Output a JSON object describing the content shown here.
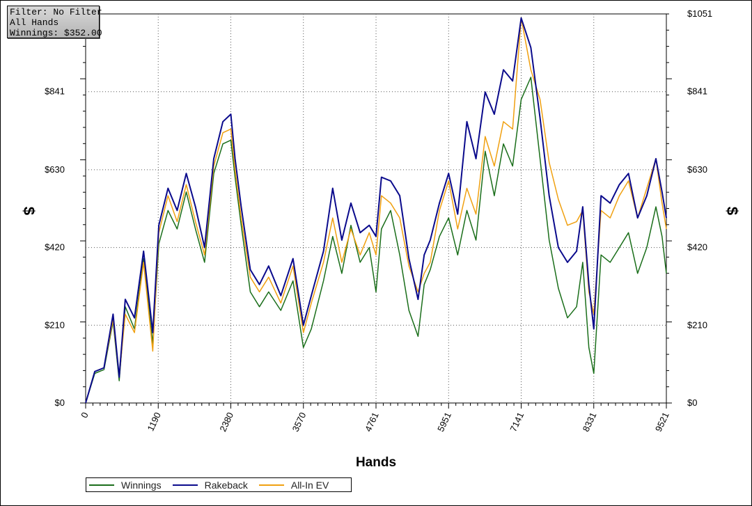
{
  "info_box": {
    "filter": "Filter: No Filter",
    "hands": "All Hands",
    "winnings": "Winnings: $352.00"
  },
  "colors": {
    "winnings": "#1a6e1a",
    "rakeback": "#0a0a8c",
    "allin_ev": "#f0a010"
  },
  "chart_data": {
    "type": "line",
    "xlabel": "Hands",
    "ylabel_left": "$",
    "ylabel_right": "$",
    "xlim": [
      0,
      9521
    ],
    "ylim": [
      0,
      1051
    ],
    "x_ticks": [
      "0",
      "1190",
      "2380",
      "3570",
      "4761",
      "5951",
      "7141",
      "8331",
      "9521"
    ],
    "y_ticks": [
      "$0",
      "$210",
      "$420",
      "$630",
      "$841",
      "$1051"
    ],
    "y_tick_values": [
      0,
      210,
      420,
      630,
      841,
      1051
    ],
    "grid": true,
    "legend_position": "bottom-left",
    "x": [
      0,
      150,
      300,
      450,
      550,
      650,
      800,
      950,
      1100,
      1200,
      1350,
      1500,
      1650,
      1800,
      1950,
      2100,
      2250,
      2380,
      2450,
      2550,
      2700,
      2850,
      3000,
      3200,
      3400,
      3570,
      3700,
      3900,
      4050,
      4200,
      4350,
      4500,
      4650,
      4761,
      4850,
      5000,
      5150,
      5300,
      5450,
      5550,
      5650,
      5800,
      5951,
      6100,
      6250,
      6400,
      6550,
      6700,
      6850,
      7000,
      7141,
      7300,
      7450,
      7600,
      7750,
      7900,
      8050,
      8150,
      8250,
      8331,
      8450,
      8600,
      8750,
      8900,
      9050,
      9200,
      9350,
      9450,
      9521
    ],
    "series": [
      {
        "name": "Winnings",
        "values": [
          0,
          80,
          90,
          220,
          60,
          260,
          200,
          390,
          160,
          430,
          520,
          470,
          570,
          470,
          380,
          620,
          700,
          710,
          610,
          480,
          300,
          260,
          300,
          250,
          330,
          150,
          200,
          330,
          450,
          350,
          480,
          380,
          420,
          300,
          470,
          520,
          400,
          250,
          180,
          320,
          360,
          450,
          500,
          400,
          520,
          440,
          680,
          560,
          700,
          640,
          820,
          880,
          660,
          440,
          310,
          230,
          260,
          380,
          150,
          80,
          400,
          380,
          420,
          460,
          350,
          420,
          530,
          450,
          350
        ],
        "color": "#1a6e1a"
      },
      {
        "name": "Rakeback",
        "values": [
          0,
          85,
          95,
          240,
          70,
          280,
          230,
          410,
          190,
          480,
          580,
          520,
          620,
          530,
          420,
          660,
          760,
          780,
          660,
          530,
          360,
          320,
          370,
          290,
          390,
          210,
          290,
          410,
          580,
          440,
          540,
          460,
          480,
          450,
          610,
          600,
          560,
          390,
          280,
          400,
          440,
          540,
          620,
          510,
          760,
          660,
          840,
          780,
          900,
          870,
          1040,
          960,
          770,
          560,
          420,
          380,
          410,
          530,
          320,
          200,
          560,
          540,
          590,
          620,
          500,
          560,
          660,
          570,
          500
        ],
        "color": "#0a0a8c"
      },
      {
        "name": "All-In EV",
        "values": [
          0,
          85,
          95,
          225,
          70,
          240,
          190,
          380,
          140,
          460,
          560,
          490,
          590,
          490,
          400,
          640,
          730,
          740,
          630,
          500,
          340,
          300,
          340,
          270,
          370,
          190,
          270,
          380,
          500,
          380,
          470,
          400,
          460,
          400,
          560,
          540,
          500,
          370,
          300,
          350,
          380,
          520,
          600,
          470,
          580,
          510,
          720,
          640,
          760,
          740,
          1040,
          900,
          820,
          650,
          550,
          480,
          490,
          520,
          300,
          240,
          520,
          500,
          560,
          600,
          500,
          580,
          660,
          540,
          470
        ],
        "color": "#f0a010"
      }
    ]
  }
}
